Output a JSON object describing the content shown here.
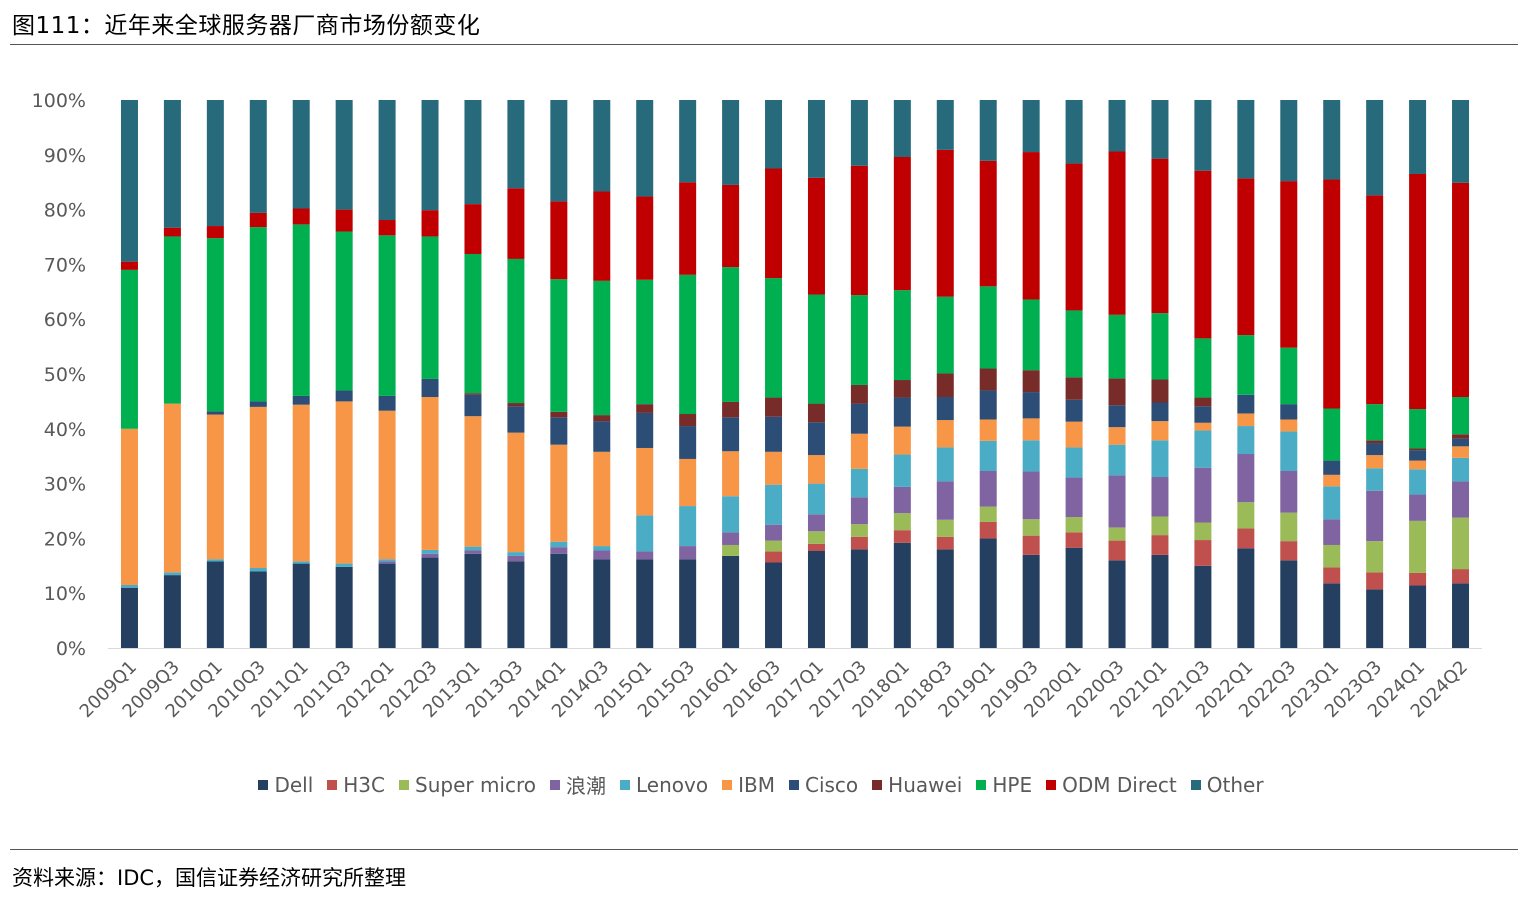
{
  "title": "图111：近年来全球服务器厂商市场份额变化",
  "source": "资料来源：IDC，国信证券经济研究所整理",
  "chart_data": {
    "type": "bar",
    "stacked": true,
    "percent": true,
    "title": "",
    "xlabel": "",
    "ylabel": "",
    "ylim": [
      0,
      100
    ],
    "yticks": [
      "0%",
      "10%",
      "20%",
      "30%",
      "40%",
      "50%",
      "60%",
      "70%",
      "80%",
      "90%",
      "100%"
    ],
    "legend_position": "bottom",
    "categories": [
      "2009Q1",
      "2009Q3",
      "2010Q1",
      "2010Q3",
      "2011Q1",
      "2011Q3",
      "2012Q1",
      "2012Q3",
      "2013Q1",
      "2013Q3",
      "2014Q1",
      "2014Q3",
      "2015Q1",
      "2015Q3",
      "2016Q1",
      "2016Q3",
      "2017Q1",
      "2017Q3",
      "2018Q1",
      "2018Q3",
      "2019Q1",
      "2019Q3",
      "2020Q1",
      "2020Q3",
      "2021Q1",
      "2021Q3",
      "2022Q1",
      "2022Q3",
      "2023Q1",
      "2023Q3",
      "2024Q1",
      "2024Q2"
    ],
    "series": [
      {
        "name": "Dell",
        "color": "#243F60",
        "values": [
          11,
          13.3,
          15.8,
          14,
          15.4,
          14.8,
          15.4,
          16.5,
          17.2,
          15.8,
          17.2,
          16.2,
          16.2,
          16.2,
          16.8,
          15.6,
          17.7,
          18,
          19.2,
          18,
          20,
          17,
          18.3,
          16,
          17,
          15,
          18.2,
          16,
          11.8,
          10.7,
          11.4,
          11.8
        ]
      },
      {
        "name": "H3C",
        "color": "#C0504D",
        "values": [
          0,
          0,
          0,
          0,
          0,
          0,
          0,
          0,
          0,
          0,
          0,
          0,
          0,
          0,
          0,
          2,
          1.3,
          2.3,
          2.3,
          2.3,
          3,
          3.5,
          2.8,
          3.6,
          3.6,
          4.7,
          3.6,
          3.5,
          2.9,
          3.1,
          2.3,
          2.6
        ]
      },
      {
        "name": "Super micro",
        "color": "#9BBB59",
        "values": [
          0,
          0,
          0,
          0,
          0,
          0,
          0,
          0,
          0,
          0,
          0,
          0,
          0,
          0,
          2,
          2,
          2.3,
          2.3,
          3.1,
          3.1,
          2.8,
          3,
          2.8,
          2.4,
          3.4,
          3.2,
          4.8,
          5.2,
          4.1,
          5.7,
          9.5,
          9.4
        ]
      },
      {
        "name": "浪潮",
        "color": "#8064A2",
        "values": [
          0,
          0,
          0,
          0,
          0,
          0,
          0.4,
          0.7,
          0.6,
          1,
          1.2,
          1.6,
          1.4,
          2.4,
          2.3,
          2.9,
          3.1,
          4.9,
          4.8,
          7,
          6.5,
          8.7,
          7.2,
          9.5,
          7.2,
          10,
          8.8,
          7.6,
          4.7,
          9.2,
          4.8,
          6.6
        ]
      },
      {
        "name": "Lenovo",
        "color": "#4BACC6",
        "values": [
          0.5,
          0.5,
          0.4,
          0.6,
          0.4,
          0.6,
          0.4,
          0.7,
          0.7,
          0.7,
          1,
          0.8,
          6.6,
          7.3,
          6.6,
          7.3,
          5.6,
          5.2,
          5.9,
          6.2,
          5.5,
          5.7,
          5.5,
          5.6,
          6.7,
          6.8,
          5.1,
          7.2,
          6,
          4.1,
          4.6,
          4.3
        ]
      },
      {
        "name": "IBM",
        "color": "#F79646",
        "values": [
          28.5,
          30.8,
          26.4,
          29.4,
          28.6,
          29.6,
          27.1,
          27.9,
          23.8,
          21.8,
          17.7,
          17.2,
          12.3,
          8.6,
          8.2,
          6,
          5.2,
          6.4,
          5.1,
          5,
          3.9,
          4,
          4.7,
          3.2,
          3.5,
          1.4,
          2.3,
          2.2,
          2.1,
          2.4,
          1.6,
          2.1
        ]
      },
      {
        "name": "Cisco",
        "color": "#2C4D75",
        "values": [
          0,
          0,
          0.6,
          1,
          1.6,
          2,
          2.7,
          3.3,
          3.9,
          4.8,
          5,
          5.6,
          6.4,
          6,
          6.2,
          6.4,
          6,
          5.5,
          5.3,
          4.2,
          5.3,
          4.8,
          4,
          4,
          3.4,
          3,
          3.4,
          2.8,
          2.6,
          2.2,
          1.9,
          1.4
        ]
      },
      {
        "name": "Huawei",
        "color": "#772C2A",
        "values": [
          0,
          0,
          0,
          0,
          0,
          0,
          0,
          0,
          0.3,
          0.6,
          1,
          1.1,
          1.6,
          2.2,
          2.8,
          3.5,
          3.4,
          3.4,
          3.2,
          4.3,
          4,
          4,
          4.1,
          4.9,
          4.2,
          1.6,
          0,
          0,
          0,
          0.5,
          0.3,
          0.8
        ]
      },
      {
        "name": "HPE",
        "color": "#00B050",
        "values": [
          29,
          30.5,
          31.6,
          31.8,
          31.3,
          29,
          29.3,
          26,
          25.4,
          26.3,
          24.2,
          24.5,
          22.7,
          25.4,
          24.6,
          21.8,
          19.9,
          16.4,
          16.4,
          14,
          15,
          12.9,
          12.2,
          11.6,
          12.1,
          10.8,
          10.9,
          10.3,
          9.5,
          6.6,
          7.2,
          6.8
        ]
      },
      {
        "name": "ODM Direct",
        "color": "#C00000",
        "values": [
          1.5,
          1.6,
          2.2,
          2.6,
          2.9,
          4,
          2.8,
          4.8,
          9.1,
          12.9,
          14.2,
          16.3,
          15.2,
          16.9,
          15,
          20,
          21.3,
          23.6,
          24.3,
          26.8,
          22.9,
          26.9,
          26.8,
          29.8,
          28.2,
          30.6,
          28.6,
          30.4,
          41.8,
          38.1,
          42.9,
          39.1
        ]
      },
      {
        "name": "Other",
        "color": "#276A7C",
        "values": [
          29.5,
          23.3,
          23,
          20.6,
          19.8,
          20,
          21.9,
          20.1,
          19,
          16.1,
          18.5,
          16.7,
          17.6,
          15,
          15.5,
          12.5,
          14.2,
          12,
          10.4,
          9.1,
          11.1,
          9.5,
          11.6,
          9.4,
          10.7,
          12.9,
          14.3,
          14.8,
          14.5,
          17.4,
          13.5,
          15.1
        ]
      }
    ]
  }
}
